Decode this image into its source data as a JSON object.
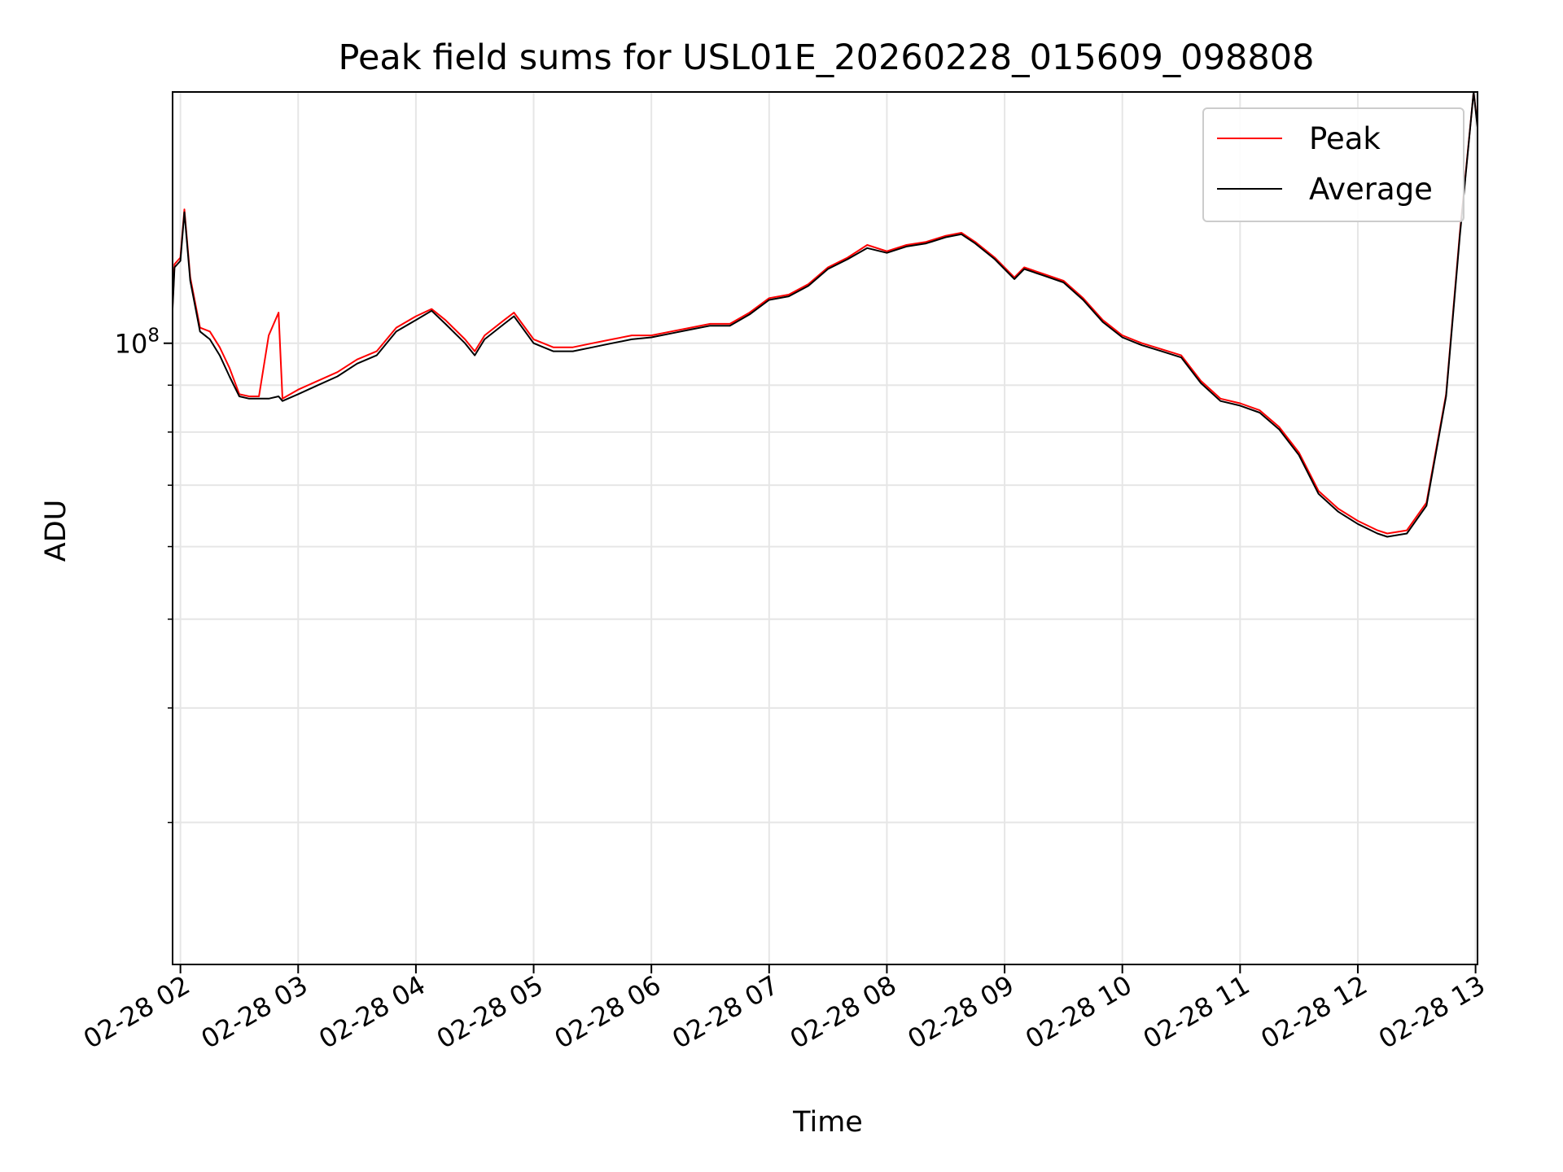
{
  "chart_data": {
    "type": "line",
    "title": "Peak field sums for USL01E_20260228_015609_098808",
    "xlabel": "Time",
    "ylabel": "ADU",
    "y_scale": "log",
    "xlim": [
      "02-28 01:56",
      "02-28 13:01"
    ],
    "ylim": [
      21000000,
      188000000
    ],
    "x_ticks": [
      "02-28 02",
      "02-28 03",
      "02-28 04",
      "02-28 05",
      "02-28 06",
      "02-28 07",
      "02-28 08",
      "02-28 09",
      "02-28 10",
      "02-28 11",
      "02-28 12",
      "02-28 13"
    ],
    "y_tick_labels": [
      {
        "value": 100000000,
        "base": "10",
        "exponent": "8"
      }
    ],
    "y_minor_ticks": [
      30000000,
      40000000,
      50000000,
      60000000,
      70000000,
      80000000,
      90000000
    ],
    "grid": true,
    "legend_position": "top-right",
    "series": [
      {
        "name": "Peak",
        "color": "#ff0000",
        "points": [
          [
            "02-28 01:56",
            110000000
          ],
          [
            "02-28 01:57",
            122000000
          ],
          [
            "02-28 02:00",
            124000000
          ],
          [
            "02-28 02:02",
            140000000
          ],
          [
            "02-28 02:05",
            118000000
          ],
          [
            "02-28 02:10",
            104000000
          ],
          [
            "02-28 02:15",
            103000000
          ],
          [
            "02-28 02:20",
            99000000
          ],
          [
            "02-28 02:25",
            94000000
          ],
          [
            "02-28 02:30",
            88000000
          ],
          [
            "02-28 02:35",
            87500000
          ],
          [
            "02-28 02:40",
            87500000
          ],
          [
            "02-28 02:45",
            102000000
          ],
          [
            "02-28 02:50",
            108000000
          ],
          [
            "02-28 02:52",
            87000000
          ],
          [
            "02-28 03:00",
            89000000
          ],
          [
            "02-28 03:10",
            91000000
          ],
          [
            "02-28 03:20",
            93000000
          ],
          [
            "02-28 03:30",
            96000000
          ],
          [
            "02-28 03:40",
            98000000
          ],
          [
            "02-28 03:50",
            104000000
          ],
          [
            "02-28 04:00",
            107000000
          ],
          [
            "02-28 04:08",
            109000000
          ],
          [
            "02-28 04:15",
            106000000
          ],
          [
            "02-28 04:25",
            101000000
          ],
          [
            "02-28 04:30",
            98000000
          ],
          [
            "02-28 04:35",
            102000000
          ],
          [
            "02-28 04:45",
            106000000
          ],
          [
            "02-28 04:50",
            108000000
          ],
          [
            "02-28 05:00",
            101000000
          ],
          [
            "02-28 05:10",
            99000000
          ],
          [
            "02-28 05:20",
            99000000
          ],
          [
            "02-28 05:30",
            100000000
          ],
          [
            "02-28 05:40",
            101000000
          ],
          [
            "02-28 05:50",
            102000000
          ],
          [
            "02-28 06:00",
            102000000
          ],
          [
            "02-28 06:10",
            103000000
          ],
          [
            "02-28 06:20",
            104000000
          ],
          [
            "02-28 06:30",
            105000000
          ],
          [
            "02-28 06:40",
            105000000
          ],
          [
            "02-28 06:50",
            108000000
          ],
          [
            "02-28 07:00",
            112000000
          ],
          [
            "02-28 07:10",
            113000000
          ],
          [
            "02-28 07:20",
            116000000
          ],
          [
            "02-28 07:30",
            121000000
          ],
          [
            "02-28 07:40",
            124000000
          ],
          [
            "02-28 07:50",
            128000000
          ],
          [
            "02-28 08:00",
            126000000
          ],
          [
            "02-28 08:10",
            128000000
          ],
          [
            "02-28 08:20",
            129000000
          ],
          [
            "02-28 08:30",
            131000000
          ],
          [
            "02-28 08:38",
            132000000
          ],
          [
            "02-28 08:45",
            129000000
          ],
          [
            "02-28 08:55",
            124000000
          ],
          [
            "02-28 09:05",
            118000000
          ],
          [
            "02-28 09:10",
            121000000
          ],
          [
            "02-28 09:20",
            119000000
          ],
          [
            "02-28 09:30",
            117000000
          ],
          [
            "02-28 09:40",
            112000000
          ],
          [
            "02-28 09:50",
            106000000
          ],
          [
            "02-28 10:00",
            102000000
          ],
          [
            "02-28 10:10",
            100000000
          ],
          [
            "02-28 10:20",
            98500000
          ],
          [
            "02-28 10:30",
            97000000
          ],
          [
            "02-28 10:40",
            91000000
          ],
          [
            "02-28 10:50",
            87000000
          ],
          [
            "02-28 11:00",
            86000000
          ],
          [
            "02-28 11:10",
            84500000
          ],
          [
            "02-28 11:20",
            81000000
          ],
          [
            "02-28 11:30",
            76000000
          ],
          [
            "02-28 11:40",
            69000000
          ],
          [
            "02-28 11:50",
            66000000
          ],
          [
            "02-28 12:00",
            64000000
          ],
          [
            "02-28 12:10",
            62500000
          ],
          [
            "02-28 12:15",
            62000000
          ],
          [
            "02-28 12:25",
            62500000
          ],
          [
            "02-28 12:35",
            67000000
          ],
          [
            "02-28 12:45",
            88000000
          ],
          [
            "02-28 12:52",
            132000000
          ],
          [
            "02-28 12:59",
            188000000
          ],
          [
            "02-28 13:01",
            173000000
          ]
        ]
      },
      {
        "name": "Average",
        "color": "#000000",
        "points": [
          [
            "02-28 01:56",
            109000000
          ],
          [
            "02-28 01:57",
            121000000
          ],
          [
            "02-28 02:00",
            123000000
          ],
          [
            "02-28 02:02",
            139000000
          ],
          [
            "02-28 02:05",
            117000000
          ],
          [
            "02-28 02:10",
            103000000
          ],
          [
            "02-28 02:15",
            101000000
          ],
          [
            "02-28 02:20",
            97000000
          ],
          [
            "02-28 02:25",
            92000000
          ],
          [
            "02-28 02:30",
            87500000
          ],
          [
            "02-28 02:35",
            87000000
          ],
          [
            "02-28 02:40",
            87000000
          ],
          [
            "02-28 02:45",
            87000000
          ],
          [
            "02-28 02:50",
            87500000
          ],
          [
            "02-28 02:52",
            86500000
          ],
          [
            "02-28 03:00",
            88000000
          ],
          [
            "02-28 03:10",
            90000000
          ],
          [
            "02-28 03:20",
            92000000
          ],
          [
            "02-28 03:30",
            95000000
          ],
          [
            "02-28 03:40",
            97000000
          ],
          [
            "02-28 03:50",
            103000000
          ],
          [
            "02-28 04:00",
            106000000
          ],
          [
            "02-28 04:08",
            108500000
          ],
          [
            "02-28 04:15",
            105000000
          ],
          [
            "02-28 04:25",
            100000000
          ],
          [
            "02-28 04:30",
            97000000
          ],
          [
            "02-28 04:35",
            101000000
          ],
          [
            "02-28 04:45",
            105000000
          ],
          [
            "02-28 04:50",
            107000000
          ],
          [
            "02-28 05:00",
            100000000
          ],
          [
            "02-28 05:10",
            98000000
          ],
          [
            "02-28 05:20",
            98000000
          ],
          [
            "02-28 05:30",
            99000000
          ],
          [
            "02-28 05:40",
            100000000
          ],
          [
            "02-28 05:50",
            101000000
          ],
          [
            "02-28 06:00",
            101500000
          ],
          [
            "02-28 06:10",
            102500000
          ],
          [
            "02-28 06:20",
            103500000
          ],
          [
            "02-28 06:30",
            104500000
          ],
          [
            "02-28 06:40",
            104500000
          ],
          [
            "02-28 06:50",
            107500000
          ],
          [
            "02-28 07:00",
            111500000
          ],
          [
            "02-28 07:10",
            112500000
          ],
          [
            "02-28 07:20",
            115500000
          ],
          [
            "02-28 07:30",
            120500000
          ],
          [
            "02-28 07:40",
            123500000
          ],
          [
            "02-28 07:50",
            127000000
          ],
          [
            "02-28 08:00",
            125500000
          ],
          [
            "02-28 08:10",
            127500000
          ],
          [
            "02-28 08:20",
            128500000
          ],
          [
            "02-28 08:30",
            130500000
          ],
          [
            "02-28 08:38",
            131500000
          ],
          [
            "02-28 08:45",
            128500000
          ],
          [
            "02-28 08:55",
            123500000
          ],
          [
            "02-28 09:05",
            117500000
          ],
          [
            "02-28 09:10",
            120500000
          ],
          [
            "02-28 09:20",
            118500000
          ],
          [
            "02-28 09:30",
            116500000
          ],
          [
            "02-28 09:40",
            111500000
          ],
          [
            "02-28 09:50",
            105500000
          ],
          [
            "02-28 10:00",
            101500000
          ],
          [
            "02-28 10:10",
            99500000
          ],
          [
            "02-28 10:20",
            98000000
          ],
          [
            "02-28 10:30",
            96500000
          ],
          [
            "02-28 10:40",
            90500000
          ],
          [
            "02-28 10:50",
            86500000
          ],
          [
            "02-28 11:00",
            85500000
          ],
          [
            "02-28 11:10",
            84000000
          ],
          [
            "02-28 11:20",
            80500000
          ],
          [
            "02-28 11:30",
            75500000
          ],
          [
            "02-28 11:40",
            68500000
          ],
          [
            "02-28 11:50",
            65500000
          ],
          [
            "02-28 12:00",
            63500000
          ],
          [
            "02-28 12:10",
            62000000
          ],
          [
            "02-28 12:15",
            61500000
          ],
          [
            "02-28 12:25",
            62000000
          ],
          [
            "02-28 12:35",
            66500000
          ],
          [
            "02-28 12:45",
            87500000
          ],
          [
            "02-28 12:52",
            131000000
          ],
          [
            "02-28 12:59",
            188000000
          ],
          [
            "02-28 13:01",
            172000000
          ]
        ]
      }
    ]
  }
}
